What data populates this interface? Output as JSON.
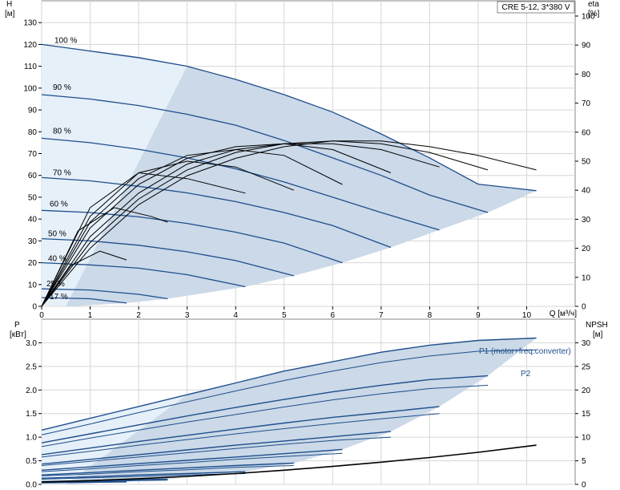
{
  "chart_data": [
    {
      "type": "line",
      "title": "CRE 5-12, 3*380 V",
      "x_axis": {
        "label": "Q [м³/ч]",
        "range": [
          0,
          11
        ],
        "ticks": [
          "0",
          "1",
          "2",
          "3",
          "4",
          "5",
          "6",
          "7",
          "8",
          "9",
          "10"
        ]
      },
      "y_left": {
        "label": "H",
        "unit": "[м]",
        "range": [
          0,
          140
        ],
        "ticks": [
          "0",
          "10",
          "20",
          "30",
          "40",
          "50",
          "60",
          "70",
          "80",
          "90",
          "100",
          "110",
          "120",
          "130"
        ]
      },
      "y_right": {
        "label": "eta",
        "unit": "[%]",
        "range": [
          0,
          100
        ],
        "ticks": [
          "0",
          "10",
          "20",
          "30",
          "40",
          "50",
          "60",
          "70",
          "80",
          "90",
          "100"
        ]
      },
      "speed_labels": [
        "100 %",
        "90 %",
        "80 %",
        "70 %",
        "60 %",
        "50 %",
        "40 %",
        "25 %",
        "17 %"
      ],
      "series": [
        {
          "kind": "head",
          "speed": 100,
          "x": [
            0,
            1,
            2,
            3,
            4,
            5,
            6,
            7,
            8,
            9,
            10.2
          ],
          "y": [
            120,
            117,
            114,
            110,
            104,
            97,
            89,
            79,
            68,
            56,
            53
          ]
        },
        {
          "kind": "head",
          "speed": 90,
          "x": [
            0,
            1,
            2,
            3,
            4,
            5,
            6,
            7,
            8,
            9.2
          ],
          "y": [
            97,
            95,
            92,
            88,
            83,
            76,
            68,
            60,
            51,
            43
          ]
        },
        {
          "kind": "head",
          "speed": 80,
          "x": [
            0,
            1,
            2,
            3,
            4,
            5,
            6,
            7,
            8.2
          ],
          "y": [
            77,
            75,
            72,
            68,
            63,
            57,
            50,
            43,
            35
          ]
        },
        {
          "kind": "head",
          "speed": 70,
          "x": [
            0,
            1,
            2,
            3,
            4,
            5,
            6,
            7.2
          ],
          "y": [
            59,
            57.5,
            55,
            52,
            48,
            43,
            37,
            27
          ]
        },
        {
          "kind": "head",
          "speed": 60,
          "x": [
            0,
            1,
            2,
            3,
            4,
            5,
            6.2
          ],
          "y": [
            44,
            43,
            41,
            38,
            34,
            29,
            20
          ]
        },
        {
          "kind": "head",
          "speed": 50,
          "x": [
            0,
            1,
            2,
            3,
            4,
            5.2
          ],
          "y": [
            31,
            30,
            28,
            25,
            21,
            14
          ]
        },
        {
          "kind": "head",
          "speed": 40,
          "x": [
            0,
            1,
            2,
            3,
            4.2
          ],
          "y": [
            20,
            19,
            17.5,
            14.5,
            9
          ]
        },
        {
          "kind": "head",
          "speed": 25,
          "x": [
            0,
            1,
            2,
            2.6
          ],
          "y": [
            8,
            7.5,
            5.5,
            3.5
          ]
        },
        {
          "kind": "head",
          "speed": 17,
          "x": [
            0,
            1,
            1.75
          ],
          "y": [
            4,
            3.5,
            1.5
          ]
        },
        {
          "kind": "eta",
          "speed": 100,
          "x": [
            0,
            1,
            2,
            3,
            4,
            5,
            6,
            7,
            8,
            9,
            10.2
          ],
          "y": [
            0,
            20,
            35,
            45,
            51,
            55,
            57,
            57,
            55,
            52,
            47
          ]
        },
        {
          "kind": "eta",
          "speed": 90,
          "x": [
            0,
            1,
            2,
            3,
            4,
            5,
            6,
            7,
            8,
            9.2
          ],
          "y": [
            0,
            22,
            37,
            47,
            53,
            56,
            57,
            56,
            53,
            47
          ]
        },
        {
          "kind": "eta",
          "speed": 80,
          "x": [
            0,
            1,
            2,
            3,
            4,
            5,
            6,
            7,
            8.2
          ],
          "y": [
            0,
            24,
            39,
            49,
            54,
            56,
            56,
            54,
            48
          ]
        },
        {
          "kind": "eta",
          "speed": 70,
          "x": [
            0,
            1,
            2,
            3,
            4,
            5,
            6,
            7.2
          ],
          "y": [
            0,
            27,
            42,
            51,
            55,
            56,
            54,
            46
          ]
        },
        {
          "kind": "eta",
          "speed": 60,
          "x": [
            0,
            1,
            2,
            3,
            4,
            5,
            6.2
          ],
          "y": [
            0,
            29,
            44,
            52,
            54,
            52,
            42
          ]
        },
        {
          "kind": "eta",
          "speed": 50,
          "x": [
            0,
            1,
            2,
            3,
            4,
            5.2
          ],
          "y": [
            0,
            31,
            46,
            50,
            48,
            40
          ]
        },
        {
          "kind": "eta",
          "speed": 40,
          "x": [
            0,
            1,
            2,
            3,
            4.2
          ],
          "y": [
            0,
            34,
            46,
            44,
            39
          ]
        },
        {
          "kind": "eta",
          "speed": 25,
          "x": [
            0,
            0.75,
            1.5,
            2.25,
            2.6
          ],
          "y": [
            0,
            26,
            34,
            31,
            29
          ]
        },
        {
          "kind": "eta",
          "speed": 17,
          "x": [
            0,
            0.6,
            1.2,
            1.75
          ],
          "y": [
            0,
            14,
            19,
            16
          ]
        }
      ]
    },
    {
      "type": "line",
      "x_axis": {
        "range": [
          0,
          11
        ],
        "ticks": [
          "0",
          "1",
          "2",
          "3",
          "4",
          "5",
          "6",
          "7",
          "8",
          "9",
          "10"
        ]
      },
      "y_left": {
        "label": "P",
        "unit": "[кВт]",
        "range": [
          0,
          3.5
        ],
        "ticks": [
          "0.0",
          "0.5",
          "1.0",
          "1.5",
          "2.0",
          "2.5",
          "3.0"
        ]
      },
      "y_right": {
        "label": "NPSH",
        "unit": "[м]",
        "range": [
          0,
          35
        ],
        "ticks": [
          "0",
          "5",
          "10",
          "15",
          "20",
          "25",
          "30"
        ]
      },
      "series_labels": [
        "P1 (motor+freq.converter)",
        "P2"
      ],
      "series": [
        {
          "kind": "P1",
          "speed": 100,
          "x": [
            0,
            1,
            2,
            3,
            4,
            5,
            6,
            7,
            8,
            9,
            10.2
          ],
          "y": [
            1.15,
            1.4,
            1.65,
            1.9,
            2.15,
            2.4,
            2.6,
            2.8,
            2.95,
            3.05,
            3.1
          ]
        },
        {
          "kind": "P2",
          "speed": 100,
          "x": [
            0,
            1,
            2,
            3,
            4,
            5,
            6,
            7,
            8,
            9,
            10.2
          ],
          "y": [
            1.05,
            1.28,
            1.52,
            1.75,
            1.98,
            2.2,
            2.4,
            2.58,
            2.72,
            2.82,
            2.85
          ]
        },
        {
          "kind": "P1",
          "speed": 90,
          "x": [
            0,
            1,
            2,
            3,
            4,
            5,
            6,
            7,
            8,
            9.2
          ],
          "y": [
            0.88,
            1.07,
            1.26,
            1.45,
            1.63,
            1.8,
            1.96,
            2.1,
            2.22,
            2.3
          ]
        },
        {
          "kind": "P2",
          "speed": 90,
          "x": [
            0,
            1,
            2,
            3,
            4,
            5,
            6,
            7,
            8,
            9.2
          ],
          "y": [
            0.8,
            0.98,
            1.15,
            1.32,
            1.48,
            1.64,
            1.79,
            1.92,
            2.03,
            2.1
          ]
        },
        {
          "kind": "P1",
          "speed": 80,
          "x": [
            0,
            1,
            2,
            3,
            4,
            5,
            6,
            7,
            8.2
          ],
          "y": [
            0.63,
            0.77,
            0.91,
            1.04,
            1.17,
            1.3,
            1.42,
            1.52,
            1.65
          ]
        },
        {
          "kind": "P2",
          "speed": 80,
          "x": [
            0,
            1,
            2,
            3,
            4,
            5,
            6,
            7,
            8.2
          ],
          "y": [
            0.58,
            0.7,
            0.83,
            0.95,
            1.07,
            1.18,
            1.29,
            1.39,
            1.5
          ]
        },
        {
          "kind": "P1",
          "speed": 70,
          "x": [
            0,
            1,
            2,
            3,
            4,
            5,
            6,
            7.2
          ],
          "y": [
            0.43,
            0.53,
            0.63,
            0.73,
            0.83,
            0.92,
            1.01,
            1.12
          ]
        },
        {
          "kind": "P2",
          "speed": 70,
          "x": [
            0,
            1,
            2,
            3,
            4,
            5,
            6,
            7.2
          ],
          "y": [
            0.4,
            0.49,
            0.58,
            0.67,
            0.76,
            0.85,
            0.93,
            1.0
          ]
        },
        {
          "kind": "P1",
          "speed": 60,
          "x": [
            0,
            1,
            2,
            3,
            4,
            5,
            6.2
          ],
          "y": [
            0.3,
            0.37,
            0.44,
            0.51,
            0.58,
            0.65,
            0.74
          ]
        },
        {
          "kind": "P2",
          "speed": 60,
          "x": [
            0,
            1,
            2,
            3,
            4,
            5,
            6.2
          ],
          "y": [
            0.27,
            0.33,
            0.4,
            0.46,
            0.53,
            0.59,
            0.66
          ]
        },
        {
          "kind": "P1",
          "speed": 50,
          "x": [
            0,
            1,
            2,
            3,
            4,
            5.2
          ],
          "y": [
            0.2,
            0.25,
            0.3,
            0.35,
            0.4,
            0.45
          ]
        },
        {
          "kind": "P2",
          "speed": 50,
          "x": [
            0,
            1,
            2,
            3,
            4,
            5.2
          ],
          "y": [
            0.18,
            0.22,
            0.27,
            0.31,
            0.36,
            0.4
          ]
        },
        {
          "kind": "P1",
          "speed": 40,
          "x": [
            0,
            1,
            2,
            3,
            4.2
          ],
          "y": [
            0.13,
            0.16,
            0.2,
            0.23,
            0.27
          ]
        },
        {
          "kind": "P2",
          "speed": 40,
          "x": [
            0,
            1,
            2,
            3,
            4.2
          ],
          "y": [
            0.11,
            0.14,
            0.17,
            0.2,
            0.23
          ]
        },
        {
          "kind": "P1",
          "speed": 25,
          "x": [
            0,
            1,
            2,
            2.6
          ],
          "y": [
            0.06,
            0.08,
            0.1,
            0.11
          ]
        },
        {
          "kind": "P2",
          "speed": 25,
          "x": [
            0,
            1,
            2,
            2.6
          ],
          "y": [
            0.05,
            0.06,
            0.08,
            0.09
          ]
        },
        {
          "kind": "P1",
          "speed": 17,
          "x": [
            0,
            1,
            1.75
          ],
          "y": [
            0.04,
            0.05,
            0.06
          ]
        },
        {
          "kind": "P2",
          "speed": 17,
          "x": [
            0,
            1,
            1.75
          ],
          "y": [
            0.03,
            0.04,
            0.05
          ]
        },
        {
          "kind": "NPSH",
          "x": [
            0,
            1,
            2,
            3,
            4,
            5,
            6,
            7,
            8,
            9,
            10.2
          ],
          "y": [
            0.5,
            0.8,
            1.2,
            1.7,
            2.3,
            3.0,
            3.8,
            4.7,
            5.7,
            6.8,
            8.3
          ]
        }
      ]
    }
  ]
}
